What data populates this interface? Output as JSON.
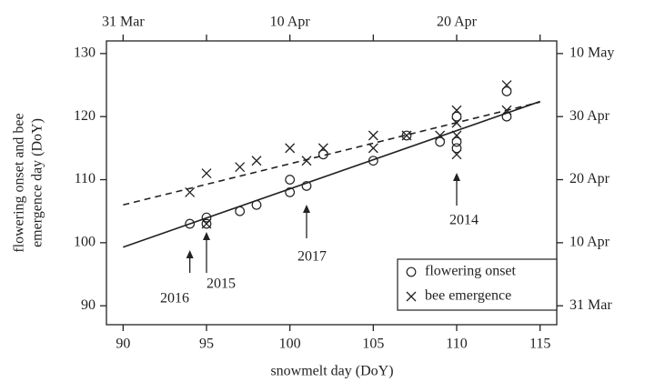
{
  "chart_data": {
    "type": "scatter",
    "x_label": "snowmelt day (DoY)",
    "y_label": [
      "flowering onset and bee",
      "emergence day (DoY)"
    ],
    "xlim": [
      89,
      116
    ],
    "ylim": [
      87,
      132
    ],
    "y2lim": [
      87,
      132
    ],
    "xticks": [
      90,
      95,
      100,
      105,
      110,
      115
    ],
    "yticks": [
      90,
      100,
      110,
      120,
      130
    ],
    "x2ticks": [
      {
        "value": 90,
        "label": "31 Mar"
      },
      {
        "value": 95,
        "label": null
      },
      {
        "value": 100,
        "label": "10 Apr"
      },
      {
        "value": 105,
        "label": null
      },
      {
        "value": 110,
        "label": "20 Apr"
      },
      {
        "value": 115,
        "label": null
      }
    ],
    "y2ticks": [
      {
        "value": 90,
        "label": "31 Mar"
      },
      {
        "value": 100,
        "label": "10 Apr"
      },
      {
        "value": 110,
        "label": "20 Apr"
      },
      {
        "value": 120,
        "label": "30 Apr"
      },
      {
        "value": 130,
        "label": "10 May"
      }
    ],
    "legend_position": "lower right",
    "series": [
      {
        "name": "flowering onset",
        "marker": "circle",
        "color": "#222",
        "x": [
          94,
          95,
          95,
          97,
          98,
          100,
          100,
          101,
          102,
          105,
          107,
          109,
          110,
          110,
          110,
          113,
          113
        ],
        "values": [
          103,
          104,
          103,
          105,
          106,
          110,
          108,
          109,
          114,
          113,
          117,
          116,
          120,
          116,
          115,
          124,
          120
        ]
      },
      {
        "name": "bee emergence",
        "marker": "cross",
        "color": "#222",
        "x": [
          94,
          95,
          95,
          97,
          98,
          100,
          101,
          102,
          105,
          105,
          107,
          109,
          110,
          110,
          110,
          110,
          113,
          113
        ],
        "values": [
          108,
          111,
          103,
          112,
          113,
          115,
          113,
          115,
          117,
          115,
          117,
          117,
          121,
          119,
          117,
          114,
          125,
          121
        ]
      }
    ],
    "fits": [
      {
        "x": [
          90,
          115
        ],
        "values": [
          99.3,
          122.4
        ],
        "dash": false
      },
      {
        "x": [
          90,
          115
        ],
        "values": [
          106,
          122.3
        ],
        "dash": true
      }
    ],
    "annotations": [
      "2016",
      "2015",
      "2017",
      "2014"
    ]
  }
}
